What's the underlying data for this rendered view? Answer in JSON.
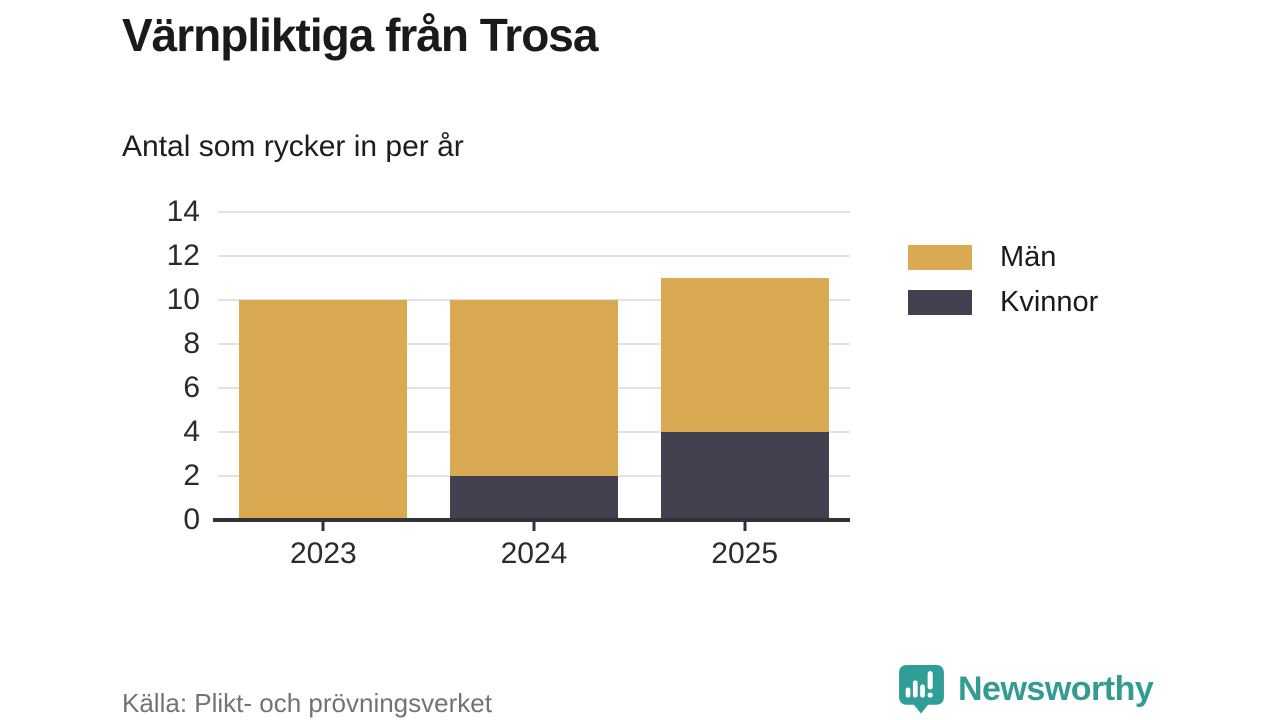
{
  "header": {
    "title": "Värnpliktiga från Trosa",
    "subtitle": "Antal som rycker in per år"
  },
  "chart_data": {
    "type": "bar",
    "stacked": true,
    "categories": [
      "2023",
      "2024",
      "2025"
    ],
    "series": [
      {
        "name": "Män",
        "color": "#d9aa52",
        "values": [
          10,
          8,
          7
        ]
      },
      {
        "name": "Kvinnor",
        "color": "#434050",
        "values": [
          0,
          2,
          4
        ]
      }
    ],
    "stack_bottom_to_top": [
      "Kvinnor",
      "Män"
    ],
    "totals": [
      10,
      10,
      11
    ],
    "title": "Värnpliktiga från Trosa",
    "subtitle": "Antal som rycker in per år",
    "xlabel": "",
    "ylabel": "",
    "yticks": [
      0,
      2,
      4,
      6,
      8,
      10,
      12,
      14
    ],
    "ylim": [
      0,
      14
    ],
    "grid": true,
    "legend_position": "right"
  },
  "footer": {
    "source": "Källa: Plikt- och prövningsverket",
    "brand": "Newsworthy"
  },
  "colors": {
    "men": "#d9aa52",
    "women": "#434050",
    "teal": "#349b93",
    "grid": "#e2e2e2",
    "axis": "#323137",
    "text": "#1a1a1a",
    "muted": "#75717c"
  }
}
